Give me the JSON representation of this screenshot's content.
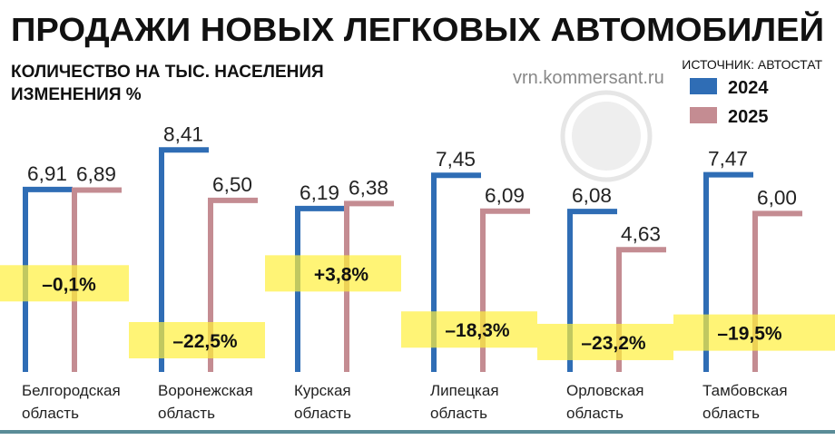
{
  "chart_data": {
    "type": "bar",
    "title": "ПРОДАЖИ НОВЫХ ЛЕГКОВЫХ АВТОМОБИЛЕЙ",
    "subtitle": "КОЛИЧЕСТВО НА ТЫС. НАСЕЛЕНИЯ",
    "subtitle2": "ИЗМЕНЕНИЯ %",
    "source": "ИСТОЧНИК: АВТОСТАТ",
    "watermark": "vrn.kommersant.ru",
    "categories": [
      [
        "Белгородская",
        "область"
      ],
      [
        "Воронежская",
        "область"
      ],
      [
        "Курская",
        "область"
      ],
      [
        "Липецкая",
        "область"
      ],
      [
        "Орловская",
        "область"
      ],
      [
        "Тамбовская",
        "область"
      ]
    ],
    "series": [
      {
        "name": "2024",
        "color": "#2f6db5",
        "values": [
          6.91,
          8.41,
          6.19,
          7.45,
          6.08,
          7.47
        ],
        "value_labels": [
          "6,91",
          "8,41",
          "6,19",
          "7,45",
          "6,08",
          "7,47"
        ]
      },
      {
        "name": "2025",
        "color": "#c48c92",
        "values": [
          6.89,
          6.5,
          6.38,
          6.09,
          4.63,
          6.0
        ],
        "value_labels": [
          "6,89",
          "6,50",
          "6,38",
          "6,09",
          "4,63",
          "6,00"
        ]
      }
    ],
    "change": {
      "color": "#fff03c",
      "values": [
        -0.1,
        -22.5,
        3.8,
        -18.3,
        -23.2,
        -19.5
      ],
      "value_labels": [
        "–0,1%",
        "–22,5%",
        "+3,8%",
        "–18,3%",
        "–23,2%",
        "–19,5%"
      ]
    }
  }
}
